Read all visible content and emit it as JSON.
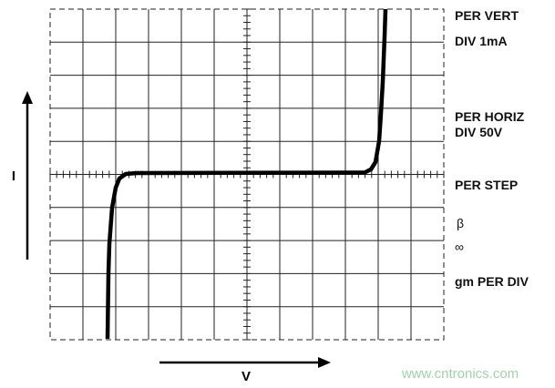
{
  "axes": {
    "vertical_label": "I",
    "horizontal_label": "V"
  },
  "settings": {
    "per_vert": "PER VERT",
    "per_vert_div": "DIV 1mA",
    "per_horiz": "PER HORIZ",
    "per_horiz_div": "DIV 50V",
    "per_step": "PER STEP",
    "beta": "β",
    "infinity": "∞",
    "gm_per_div": "gm PER DIV"
  },
  "watermark": "www.cntronics.com"
}
